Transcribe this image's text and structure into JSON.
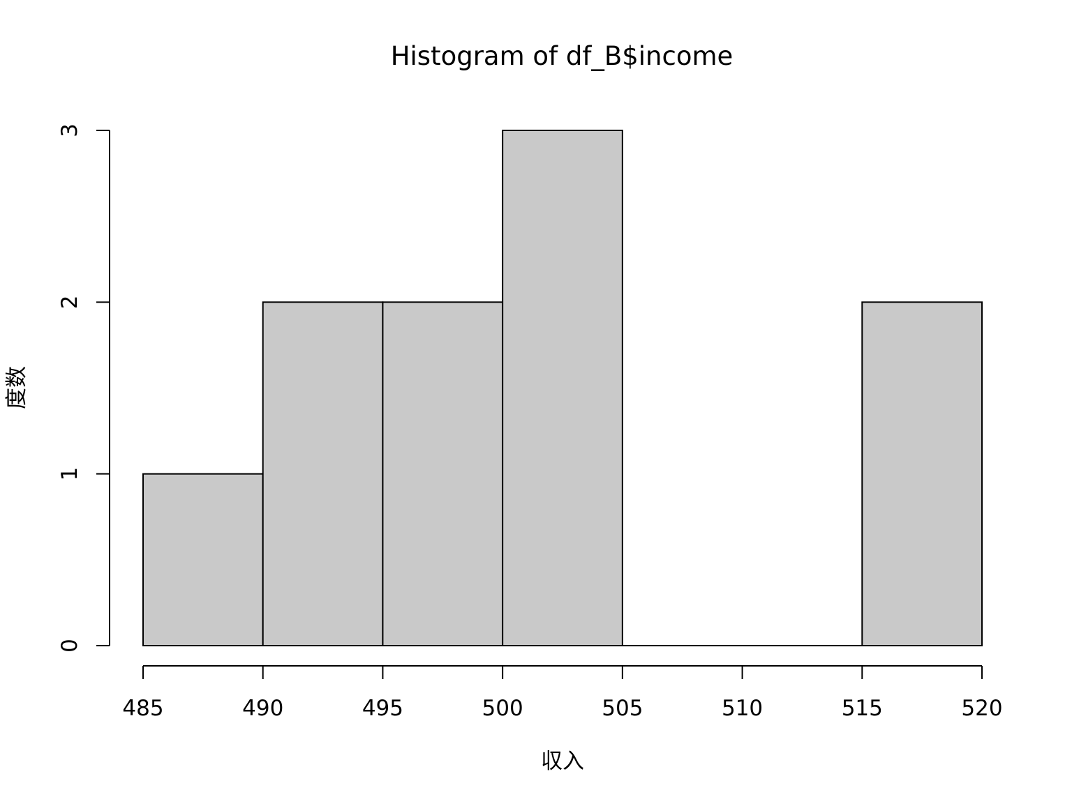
{
  "chart_data": {
    "type": "bar",
    "title": "Histogram of df_B$income",
    "xlabel": "収入",
    "ylabel": "度数",
    "bins": [
      {
        "start": 485,
        "end": 490,
        "count": 1
      },
      {
        "start": 490,
        "end": 495,
        "count": 2
      },
      {
        "start": 495,
        "end": 500,
        "count": 2
      },
      {
        "start": 500,
        "end": 505,
        "count": 3
      },
      {
        "start": 505,
        "end": 510,
        "count": 0
      },
      {
        "start": 510,
        "end": 515,
        "count": 0
      },
      {
        "start": 515,
        "end": 520,
        "count": 2
      }
    ],
    "xlim": [
      485,
      520
    ],
    "ylim": [
      0,
      3
    ],
    "x_ticks": [
      "485",
      "490",
      "495",
      "500",
      "505",
      "510",
      "515",
      "520"
    ],
    "y_ticks": [
      "0",
      "1",
      "2",
      "3"
    ],
    "grid": false,
    "bar_fill": "#c9c9c9",
    "bar_stroke": "#000000"
  }
}
